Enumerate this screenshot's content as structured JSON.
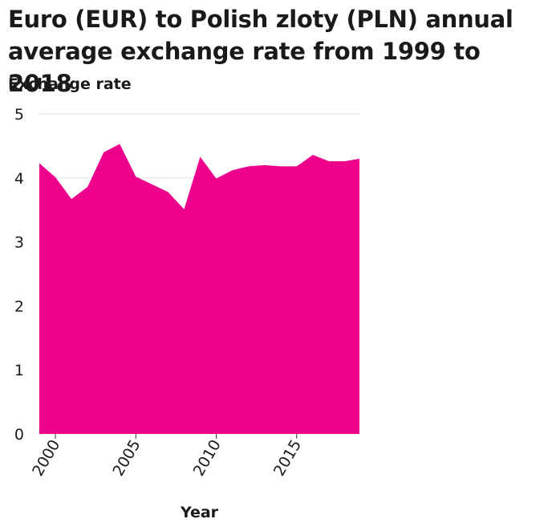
{
  "chart_data": {
    "type": "area",
    "title": "Euro (EUR) to Polish zloty (PLN) annual average exchange rate from 1999 to 2018",
    "xlabel": "Year",
    "ylabel": "Exchange rate",
    "x": [
      1999,
      2000,
      2001,
      2002,
      2003,
      2004,
      2005,
      2006,
      2007,
      2008,
      2009,
      2010,
      2011,
      2012,
      2013,
      2014,
      2015,
      2016,
      2017,
      2018
    ],
    "values": [
      4.23,
      4.01,
      3.67,
      3.86,
      4.4,
      4.53,
      4.02,
      3.9,
      3.78,
      3.51,
      4.33,
      3.99,
      4.12,
      4.18,
      4.2,
      4.18,
      4.18,
      4.36,
      4.26,
      4.26
    ],
    "xlim": [
      1999,
      2018.9
    ],
    "ylim": [
      0,
      5
    ],
    "yticks": [
      0,
      1,
      2,
      3,
      4,
      5
    ],
    "xticks": [
      2000,
      2005,
      2010,
      2015
    ],
    "grid": true,
    "fill_color": "#ec008c",
    "grid_color": "#dddddd"
  }
}
